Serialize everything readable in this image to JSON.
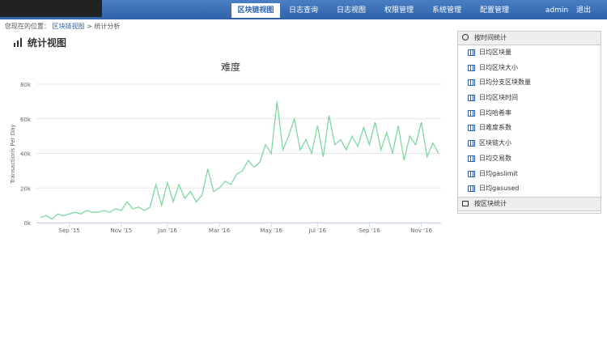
{
  "nav": {
    "items": [
      "区块链视图",
      "日志查询",
      "日志视图",
      "权限管理",
      "系统管理",
      "配置管理"
    ],
    "active": 0,
    "user": "admin",
    "logout": "退出"
  },
  "breadcrumb": {
    "prefix": "您现在的位置：",
    "links": [
      "区块链视图",
      "统计分析"
    ]
  },
  "page_title": "统计视图",
  "sidebar": {
    "section1": "按时间统计",
    "items": [
      "日均区块量",
      "日均区块大小",
      "日均分支区块数量",
      "日均区块时间",
      "日均哈希率",
      "日难度系数",
      "区块链大小",
      "日均交易数",
      "日均gaslimit",
      "日均gasused"
    ],
    "section2": "按区块统计"
  },
  "chart_data": {
    "type": "line",
    "title": "难度",
    "y_label": "Transactions Per Day",
    "categories": [
      null,
      null,
      null,
      null,
      null,
      "Sep '15",
      null,
      null,
      null,
      null,
      null,
      null,
      null,
      null,
      "Nov '15",
      null,
      null,
      null,
      null,
      null,
      null,
      null,
      "Jan '16",
      null,
      null,
      null,
      null,
      null,
      null,
      null,
      null,
      "Mar '16",
      null,
      null,
      null,
      null,
      null,
      null,
      null,
      null,
      "May '16",
      null,
      null,
      null,
      null,
      null,
      null,
      null,
      "Jul '16",
      null,
      null,
      null,
      null,
      null,
      null,
      null,
      null,
      "Sep '16",
      null,
      null,
      null,
      null,
      null,
      null,
      null,
      null,
      "Nov '16",
      null,
      null,
      null
    ],
    "series": [
      {
        "name": "难度",
        "color": "#7dd8a2",
        "values": [
          3000,
          4000,
          2000,
          5000,
          4000,
          5000,
          6000,
          5000,
          7000,
          6000,
          6000,
          7000,
          6000,
          8000,
          7000,
          12000,
          8000,
          9000,
          7000,
          9000,
          22000,
          10000,
          23000,
          12000,
          22000,
          14000,
          18000,
          12000,
          16000,
          31000,
          18000,
          20000,
          24000,
          22000,
          28000,
          30000,
          36000,
          32000,
          35000,
          45000,
          40000,
          70000,
          42000,
          50000,
          60000,
          42000,
          48000,
          40000,
          56000,
          38000,
          62000,
          45000,
          48000,
          42000,
          50000,
          44000,
          55000,
          45000,
          58000,
          42000,
          52000,
          40000,
          56000,
          36000,
          50000,
          45000,
          58000,
          38000,
          46000,
          40000
        ]
      }
    ],
    "ylim": [
      0,
      80000
    ],
    "yticks": [
      {
        "value": 0,
        "label": "0k"
      },
      {
        "value": 20000,
        "label": "20k"
      },
      {
        "value": 40000,
        "label": "40k"
      },
      {
        "value": 60000,
        "label": "60k"
      },
      {
        "value": 80000,
        "label": "80k"
      }
    ],
    "grid": true
  }
}
